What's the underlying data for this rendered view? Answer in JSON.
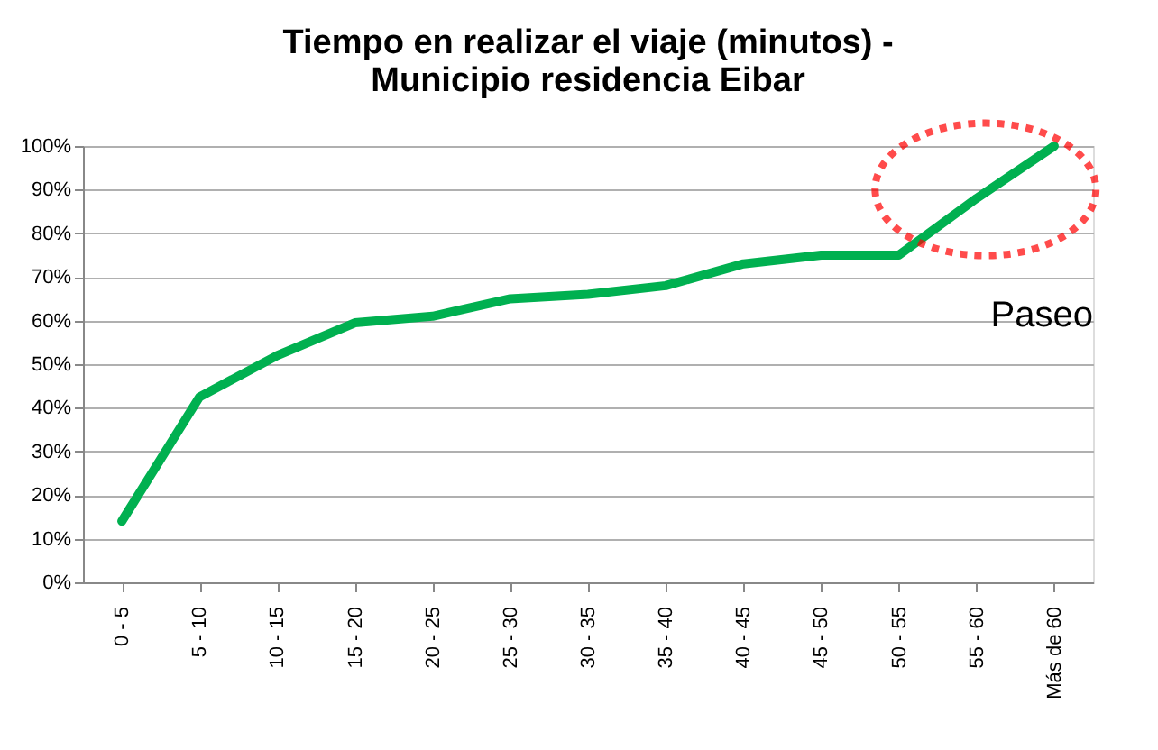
{
  "chart_data": {
    "type": "line",
    "title": "Tiempo en realizar el viaje (minutos) -\nMunicipio residencia Eibar",
    "categories": [
      "0 - 5",
      "5 - 10",
      "10 - 15",
      "15 - 20",
      "20 - 25",
      "25 - 30",
      "30 - 35",
      "35 - 40",
      "40 - 45",
      "45 - 50",
      "50 - 55",
      "55 - 60",
      "Más de 60"
    ],
    "series": [
      {
        "color": "#00b050",
        "values": [
          14,
          42.5,
          52,
          59.5,
          61,
          65,
          66,
          68,
          73,
          75,
          75,
          88,
          100
        ]
      }
    ],
    "ylim": [
      0,
      100
    ],
    "yticks": [
      {
        "value": 0,
        "label": "0%"
      },
      {
        "value": 10,
        "label": "10%"
      },
      {
        "value": 20,
        "label": "20%"
      },
      {
        "value": 30,
        "label": "30%"
      },
      {
        "value": 40,
        "label": "40%"
      },
      {
        "value": 50,
        "label": "50%"
      },
      {
        "value": 60,
        "label": "60%"
      },
      {
        "value": 70,
        "label": "70%"
      },
      {
        "value": 80,
        "label": "80%"
      },
      {
        "value": 90,
        "label": "90%"
      },
      {
        "value": 100,
        "label": "100%"
      }
    ],
    "grid": "y",
    "marker": "none",
    "line_style": "solid",
    "annotations": [
      "Paseo"
    ]
  }
}
